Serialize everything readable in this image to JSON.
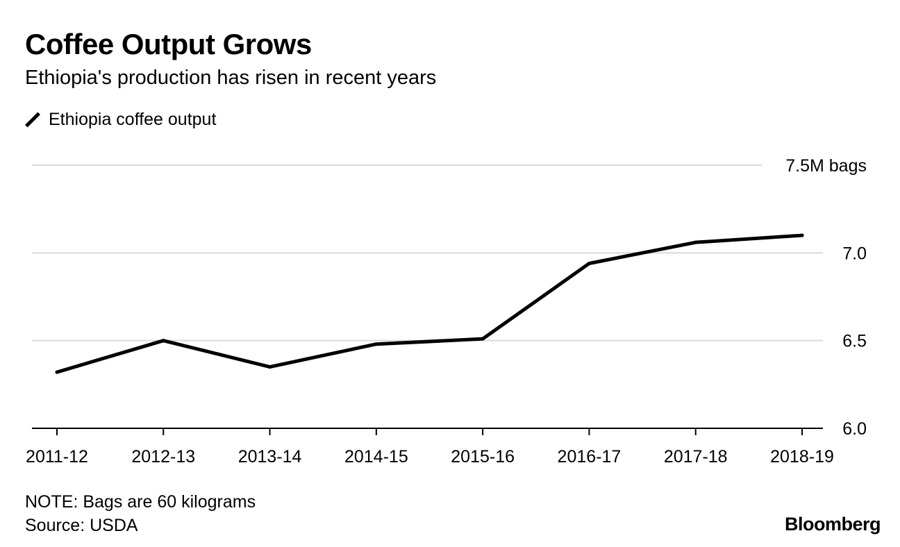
{
  "title": "Coffee Output Grows",
  "subtitle": "Ethiopia's production has risen in recent years",
  "note": "NOTE: Bags are 60 kilograms",
  "source": "Source: USDA",
  "logo": "Bloomberg",
  "chart_data": {
    "type": "line",
    "title": "Coffee Output Grows",
    "subtitle": "Ethiopia's production has risen in recent years",
    "categories": [
      "2011-12",
      "2012-13",
      "2013-14",
      "2014-15",
      "2015-16",
      "2016-17",
      "2017-18",
      "2018-19"
    ],
    "series": [
      {
        "name": "Ethiopia coffee output",
        "color": "#000000",
        "values": [
          6.32,
          6.5,
          6.35,
          6.48,
          6.51,
          6.94,
          7.06,
          7.1
        ]
      }
    ],
    "ylim": [
      6.0,
      7.5
    ],
    "yticks": [
      6.0,
      6.5,
      7.0,
      7.5
    ],
    "ytick_labels": [
      "6.0",
      "6.5",
      "7.0",
      "7.5M bags"
    ],
    "grid": true,
    "legend": "top-left",
    "gridline_color": "#d9d9d9"
  }
}
